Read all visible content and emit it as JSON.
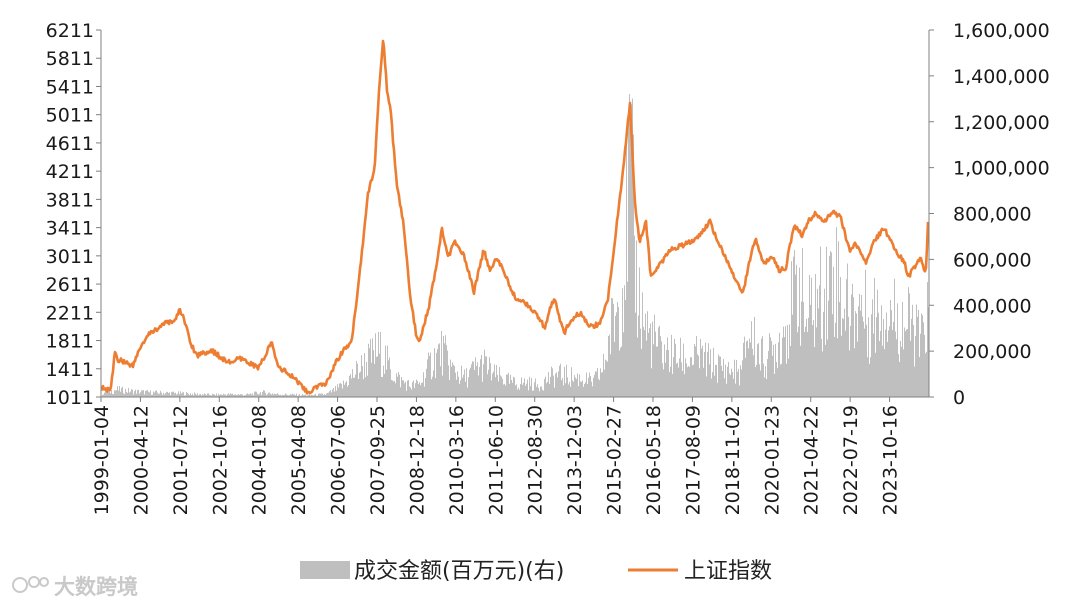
{
  "chart_data": {
    "type": "line",
    "colors": {
      "index_line": "#ed7d31",
      "volume_bars": "#bfbfbf"
    },
    "x_tick_labels": [
      "1999-01-04",
      "2000-04-12",
      "2001-07-12",
      "2002-10-16",
      "2004-01-08",
      "2005-04-08",
      "2006-07-06",
      "2007-09-25",
      "2008-12-18",
      "2010-03-16",
      "2011-06-10",
      "2012-08-30",
      "2013-12-03",
      "2015-02-27",
      "2016-05-18",
      "2017-08-09",
      "2018-11-02",
      "2020-01-23",
      "2021-04-22",
      "2022-07-19",
      "2023-10-16"
    ],
    "y_left": {
      "ticks": [
        "6211",
        "5811",
        "5411",
        "5011",
        "4611",
        "4211",
        "3811",
        "3411",
        "3011",
        "2611",
        "2211",
        "1811",
        "1411",
        "1011"
      ],
      "range": [
        1011,
        6211
      ]
    },
    "y_right": {
      "ticks": [
        "1,600,000",
        "1,400,000",
        "1,200,000",
        "1,000,000",
        "800,000",
        "600,000",
        "400,000",
        "200,000",
        "0"
      ],
      "range": [
        0,
        1600000
      ]
    },
    "series": [
      {
        "name": "成交金额(百万元)(右)",
        "type": "bar",
        "axis": "right",
        "points": [
          [
            1999.0,
            20000
          ],
          [
            1999.5,
            40000
          ],
          [
            2000.0,
            30000
          ],
          [
            2000.5,
            25000
          ],
          [
            2001.0,
            22000
          ],
          [
            2001.5,
            20000
          ],
          [
            2002.0,
            15000
          ],
          [
            2002.5,
            12000
          ],
          [
            2003.0,
            15000
          ],
          [
            2003.5,
            12000
          ],
          [
            2004.0,
            25000
          ],
          [
            2004.5,
            15000
          ],
          [
            2005.0,
            12000
          ],
          [
            2005.5,
            10000
          ],
          [
            2006.0,
            15000
          ],
          [
            2006.5,
            60000
          ],
          [
            2007.0,
            150000
          ],
          [
            2007.3,
            200000
          ],
          [
            2007.6,
            250000
          ],
          [
            2007.8,
            220000
          ],
          [
            2008.0,
            140000
          ],
          [
            2008.3,
            90000
          ],
          [
            2008.6,
            60000
          ],
          [
            2008.9,
            70000
          ],
          [
            2009.3,
            200000
          ],
          [
            2009.6,
            250000
          ],
          [
            2009.9,
            150000
          ],
          [
            2010.3,
            100000
          ],
          [
            2010.6,
            150000
          ],
          [
            2010.9,
            180000
          ],
          [
            2011.2,
            120000
          ],
          [
            2011.6,
            90000
          ],
          [
            2011.9,
            70000
          ],
          [
            2012.2,
            80000
          ],
          [
            2012.6,
            60000
          ],
          [
            2012.9,
            100000
          ],
          [
            2013.2,
            120000
          ],
          [
            2013.6,
            110000
          ],
          [
            2013.9,
            100000
          ],
          [
            2014.3,
            80000
          ],
          [
            2014.6,
            150000
          ],
          [
            2014.9,
            400000
          ],
          [
            2015.2,
            600000
          ],
          [
            2015.3,
            850000
          ],
          [
            2015.45,
            1300000
          ],
          [
            2015.6,
            700000
          ],
          [
            2015.8,
            450000
          ],
          [
            2016.0,
            350000
          ],
          [
            2016.4,
            250000
          ],
          [
            2016.8,
            220000
          ],
          [
            2017.2,
            200000
          ],
          [
            2017.6,
            220000
          ],
          [
            2018.0,
            180000
          ],
          [
            2018.4,
            150000
          ],
          [
            2018.9,
            130000
          ],
          [
            2019.1,
            350000
          ],
          [
            2019.3,
            300000
          ],
          [
            2019.6,
            200000
          ],
          [
            2019.9,
            250000
          ],
          [
            2020.2,
            350000
          ],
          [
            2020.5,
            500000
          ],
          [
            2020.7,
            650000
          ],
          [
            2020.9,
            400000
          ],
          [
            2021.2,
            500000
          ],
          [
            2021.6,
            600000
          ],
          [
            2021.8,
            700000
          ],
          [
            2022.0,
            550000
          ],
          [
            2022.3,
            450000
          ],
          [
            2022.6,
            500000
          ],
          [
            2022.9,
            400000
          ],
          [
            2023.2,
            500000
          ],
          [
            2023.6,
            450000
          ],
          [
            2023.9,
            400000
          ],
          [
            2024.2,
            380000
          ],
          [
            2024.5,
            300000
          ],
          [
            2024.75,
            500000
          ]
        ]
      },
      {
        "name": "上证指数",
        "type": "line",
        "axis": "left",
        "points": [
          [
            1999.0,
            1140
          ],
          [
            1999.3,
            1100
          ],
          [
            1999.45,
            1700
          ],
          [
            1999.5,
            1550
          ],
          [
            1999.8,
            1500
          ],
          [
            2000.0,
            1450
          ],
          [
            2000.2,
            1700
          ],
          [
            2000.5,
            1900
          ],
          [
            2000.8,
            2000
          ],
          [
            2001.0,
            2050
          ],
          [
            2001.3,
            2100
          ],
          [
            2001.45,
            2245
          ],
          [
            2001.6,
            2100
          ],
          [
            2001.8,
            1750
          ],
          [
            2002.0,
            1600
          ],
          [
            2002.2,
            1650
          ],
          [
            2002.5,
            1650
          ],
          [
            2002.8,
            1550
          ],
          [
            2003.0,
            1500
          ],
          [
            2003.3,
            1550
          ],
          [
            2003.6,
            1500
          ],
          [
            2003.9,
            1420
          ],
          [
            2004.1,
            1600
          ],
          [
            2004.3,
            1780
          ],
          [
            2004.5,
            1450
          ],
          [
            2004.8,
            1350
          ],
          [
            2005.2,
            1200
          ],
          [
            2005.45,
            1050
          ],
          [
            2005.7,
            1150
          ],
          [
            2006.0,
            1200
          ],
          [
            2006.3,
            1500
          ],
          [
            2006.5,
            1650
          ],
          [
            2006.8,
            1800
          ],
          [
            2006.95,
            2400
          ],
          [
            2007.1,
            3000
          ],
          [
            2007.3,
            3900
          ],
          [
            2007.5,
            4200
          ],
          [
            2007.65,
            5400
          ],
          [
            2007.78,
            6124
          ],
          [
            2007.9,
            5300
          ],
          [
            2008.0,
            5100
          ],
          [
            2008.2,
            4000
          ],
          [
            2008.4,
            3500
          ],
          [
            2008.6,
            2500
          ],
          [
            2008.8,
            1900
          ],
          [
            2008.9,
            1800
          ],
          [
            2009.2,
            2300
          ],
          [
            2009.4,
            2800
          ],
          [
            2009.6,
            3400
          ],
          [
            2009.8,
            3000
          ],
          [
            2010.0,
            3200
          ],
          [
            2010.3,
            3000
          ],
          [
            2010.6,
            2500
          ],
          [
            2010.9,
            3100
          ],
          [
            2011.1,
            2800
          ],
          [
            2011.3,
            3000
          ],
          [
            2011.6,
            2700
          ],
          [
            2011.9,
            2400
          ],
          [
            2012.2,
            2350
          ],
          [
            2012.5,
            2200
          ],
          [
            2012.8,
            2000
          ],
          [
            2012.95,
            2250
          ],
          [
            2013.1,
            2400
          ],
          [
            2013.4,
            1900
          ],
          [
            2013.6,
            2100
          ],
          [
            2013.9,
            2200
          ],
          [
            2014.2,
            2000
          ],
          [
            2014.5,
            2050
          ],
          [
            2014.75,
            2350
          ],
          [
            2015.0,
            3300
          ],
          [
            2015.25,
            4300
          ],
          [
            2015.45,
            5178
          ],
          [
            2015.6,
            3800
          ],
          [
            2015.75,
            3200
          ],
          [
            2015.95,
            3500
          ],
          [
            2016.1,
            2700
          ],
          [
            2016.4,
            2900
          ],
          [
            2016.7,
            3100
          ],
          [
            2017.0,
            3150
          ],
          [
            2017.3,
            3200
          ],
          [
            2017.6,
            3300
          ],
          [
            2017.95,
            3500
          ],
          [
            2018.1,
            3300
          ],
          [
            2018.4,
            3000
          ],
          [
            2018.7,
            2700
          ],
          [
            2018.95,
            2450
          ],
          [
            2019.2,
            3000
          ],
          [
            2019.35,
            3270
          ],
          [
            2019.6,
            2900
          ],
          [
            2019.9,
            3000
          ],
          [
            2020.1,
            2800
          ],
          [
            2020.3,
            2850
          ],
          [
            2020.55,
            3450
          ],
          [
            2020.8,
            3300
          ],
          [
            2021.0,
            3500
          ],
          [
            2021.2,
            3600
          ],
          [
            2021.5,
            3500
          ],
          [
            2021.75,
            3650
          ],
          [
            2022.0,
            3550
          ],
          [
            2022.3,
            3050
          ],
          [
            2022.45,
            3200
          ],
          [
            2022.8,
            2900
          ],
          [
            2023.0,
            3200
          ],
          [
            2023.35,
            3400
          ],
          [
            2023.7,
            3100
          ],
          [
            2024.0,
            2900
          ],
          [
            2024.1,
            2700
          ],
          [
            2024.5,
            3000
          ],
          [
            2024.65,
            2750
          ],
          [
            2024.72,
            3500
          ]
        ]
      }
    ],
    "xlim": [
      1999.0,
      2024.75
    ]
  },
  "legend": {
    "items": [
      {
        "label": "成交金额(百万元)(右)",
        "color": "#bfbfbf"
      },
      {
        "label": "上证指数",
        "color": "#ed7d31"
      }
    ],
    "position": "bottom"
  },
  "watermark": {
    "text": "大数跨境"
  }
}
